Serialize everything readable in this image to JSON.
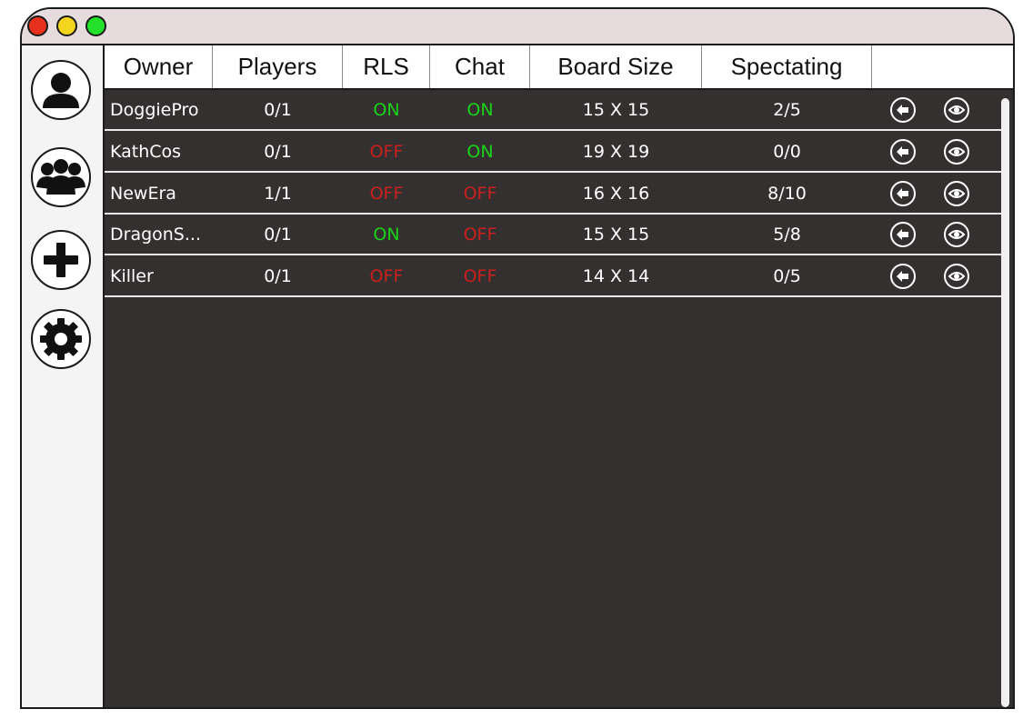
{
  "window": {
    "traffic_lights": [
      {
        "name": "close-light",
        "color": "#e8301e"
      },
      {
        "name": "minimize-light",
        "color": "#f3d51d"
      },
      {
        "name": "maximize-light",
        "color": "#23e02a"
      }
    ]
  },
  "sidebar": {
    "items": [
      {
        "name": "profile",
        "icon": "user-icon"
      },
      {
        "name": "friends",
        "icon": "group-icon"
      },
      {
        "name": "create",
        "icon": "plus-icon"
      },
      {
        "name": "settings",
        "icon": "gear-icon"
      }
    ]
  },
  "table": {
    "headers": [
      "Owner",
      "Players",
      "RLS",
      "Chat",
      "Board Size",
      "Spectating"
    ],
    "rows": [
      {
        "owner": "DoggiePro",
        "players": "0/1",
        "rls": "ON",
        "chat": "ON",
        "board_size": "15 X 15",
        "spectating": "2/5"
      },
      {
        "owner": "KathCos",
        "players": "0/1",
        "rls": "OFF",
        "chat": "ON",
        "board_size": "19 X 19",
        "spectating": "0/0"
      },
      {
        "owner": "NewEra",
        "players": "1/1",
        "rls": "OFF",
        "chat": "OFF",
        "board_size": "16 X 16",
        "spectating": "8/10"
      },
      {
        "owner": "DragonS...",
        "players": "0/1",
        "rls": "ON",
        "chat": "OFF",
        "board_size": "15 X 15",
        "spectating": "5/8"
      },
      {
        "owner": "Killer",
        "players": "0/1",
        "rls": "OFF",
        "chat": "OFF",
        "board_size": "14 X 14",
        "spectating": "0/5"
      }
    ],
    "row_actions": [
      {
        "name": "join",
        "icon": "arrow-left-icon"
      },
      {
        "name": "spectate",
        "icon": "eye-icon"
      }
    ]
  },
  "colors": {
    "on": "#19d219",
    "off": "#c8201e",
    "table_background": "#353030",
    "titlebar": "#e6dcdd"
  }
}
